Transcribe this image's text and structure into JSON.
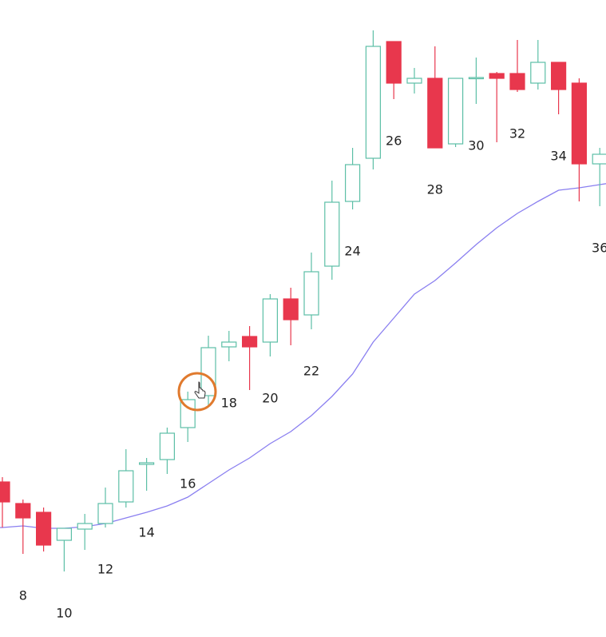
{
  "chart_data": {
    "type": "candlestick",
    "categories": [
      null,
      8,
      null,
      10,
      null,
      12,
      null,
      14,
      null,
      16,
      null,
      18,
      null,
      20,
      null,
      22,
      null,
      24,
      null,
      26,
      null,
      28,
      null,
      30,
      null,
      32,
      null,
      34,
      null,
      36
    ],
    "open": [
      194,
      167,
      156,
      121,
      135,
      142,
      169,
      216,
      222,
      262,
      302,
      363,
      376,
      369,
      423,
      403,
      464,
      545,
      599,
      745,
      693,
      699,
      617,
      699,
      705,
      705,
      693,
      719,
      693,
      592
    ],
    "high": [
      200,
      172,
      162,
      136,
      154,
      187,
      235,
      224,
      262,
      307,
      377,
      383,
      389,
      429,
      437,
      481,
      571,
      612,
      759,
      745,
      712,
      739,
      699,
      725,
      707,
      747,
      747,
      719,
      699,
      612
    ],
    "low": [
      137,
      104,
      107,
      82,
      109,
      137,
      162,
      183,
      204,
      244,
      290,
      345,
      309,
      351,
      365,
      385,
      447,
      535,
      585,
      673,
      680,
      612,
      613,
      667,
      619,
      682,
      685,
      654,
      545,
      539
    ],
    "close": [
      169,
      149,
      115,
      136,
      142,
      167,
      208,
      218,
      255,
      297,
      362,
      369,
      363,
      423,
      397,
      457,
      544,
      591,
      739,
      693,
      699,
      612,
      699,
      700,
      699,
      685,
      719,
      685,
      592,
      604
    ],
    "up_color": "#5cbfa6",
    "down_color": "#e8374d",
    "moving_average": {
      "color": "#8a7ff0",
      "values": [
        137,
        139,
        136,
        136,
        138,
        142,
        149,
        156,
        164,
        175,
        192,
        209,
        224,
        242,
        257,
        277,
        301,
        329,
        369,
        399,
        429,
        446,
        468,
        491,
        512,
        530,
        545,
        559,
        562,
        566
      ]
    },
    "ylim": [
      0,
      797
    ]
  }
}
